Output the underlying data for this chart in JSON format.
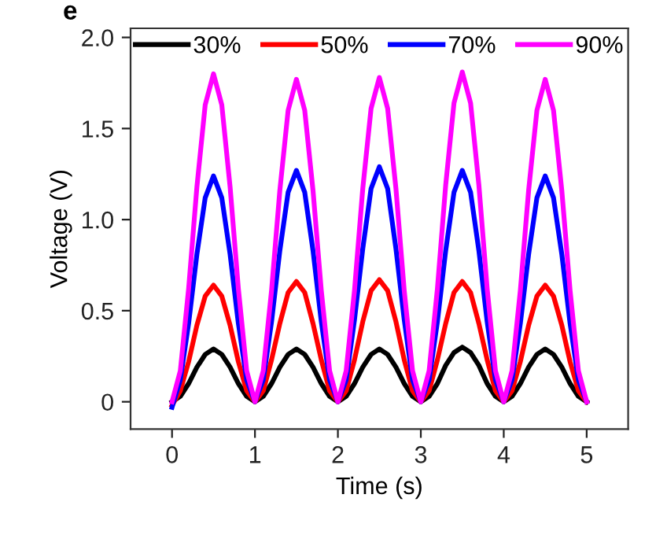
{
  "chart_data": {
    "type": "line",
    "xlabel": "Time (s)",
    "ylabel": "Voltage (V)",
    "annotations": [
      "e"
    ],
    "x": [
      0,
      0.1,
      0.2,
      0.3,
      0.4,
      0.5,
      0.6,
      0.7,
      0.8,
      0.9,
      1,
      1.1,
      1.2,
      1.3,
      1.4,
      1.5,
      1.6,
      1.7,
      1.8,
      1.9,
      2,
      2.1,
      2.2,
      2.3,
      2.4,
      2.5,
      2.6,
      2.7,
      2.8,
      2.9,
      3,
      3.1,
      3.2,
      3.3,
      3.4,
      3.5,
      3.6,
      3.7,
      3.8,
      3.9,
      4,
      4.1,
      4.2,
      4.3,
      4.4,
      4.5,
      4.6,
      4.7,
      4.8,
      4.9,
      5
    ],
    "series": [
      {
        "name": "30%",
        "color": "#000000",
        "values": [
          0,
          0.03,
          0.1,
          0.19,
          0.26,
          0.29,
          0.26,
          0.19,
          0.1,
          0.03,
          0,
          0.03,
          0.1,
          0.19,
          0.26,
          0.29,
          0.26,
          0.19,
          0.1,
          0.03,
          0,
          0.03,
          0.1,
          0.19,
          0.26,
          0.29,
          0.26,
          0.19,
          0.1,
          0.03,
          0,
          0.03,
          0.1,
          0.2,
          0.27,
          0.3,
          0.27,
          0.2,
          0.1,
          0.03,
          0,
          0.03,
          0.1,
          0.19,
          0.26,
          0.29,
          0.26,
          0.19,
          0.1,
          0.03,
          0
        ]
      },
      {
        "name": "50%",
        "color": "#ff0000",
        "values": [
          -0.02,
          0.06,
          0.22,
          0.42,
          0.58,
          0.64,
          0.58,
          0.42,
          0.22,
          0.06,
          0,
          0.06,
          0.23,
          0.43,
          0.6,
          0.66,
          0.6,
          0.43,
          0.23,
          0.06,
          0,
          0.06,
          0.23,
          0.44,
          0.61,
          0.67,
          0.61,
          0.44,
          0.23,
          0.06,
          0,
          0.06,
          0.23,
          0.43,
          0.6,
          0.66,
          0.6,
          0.43,
          0.23,
          0.06,
          0,
          0.06,
          0.22,
          0.42,
          0.58,
          0.64,
          0.58,
          0.42,
          0.22,
          0.06,
          0
        ]
      },
      {
        "name": "70%",
        "color": "#0000ff",
        "values": [
          -0.03,
          0.12,
          0.43,
          0.81,
          1.12,
          1.24,
          1.12,
          0.81,
          0.43,
          0.12,
          0,
          0.12,
          0.44,
          0.83,
          1.15,
          1.27,
          1.15,
          0.83,
          0.44,
          0.12,
          0,
          0.12,
          0.45,
          0.84,
          1.17,
          1.29,
          1.17,
          0.84,
          0.45,
          0.12,
          0,
          0.12,
          0.44,
          0.83,
          1.15,
          1.27,
          1.15,
          0.83,
          0.44,
          0.12,
          0,
          0.12,
          0.43,
          0.81,
          1.12,
          1.24,
          1.12,
          0.81,
          0.43,
          0.12,
          0
        ]
      },
      {
        "name": "90%",
        "color": "#ff00ff",
        "values": [
          0,
          0.17,
          0.62,
          1.18,
          1.63,
          1.8,
          1.63,
          1.18,
          0.62,
          0.17,
          0,
          0.17,
          0.61,
          1.16,
          1.6,
          1.77,
          1.6,
          1.16,
          0.61,
          0.17,
          0,
          0.17,
          0.61,
          1.17,
          1.61,
          1.78,
          1.61,
          1.17,
          0.61,
          0.17,
          0,
          0.17,
          0.62,
          1.19,
          1.64,
          1.81,
          1.64,
          1.19,
          0.62,
          0.17,
          0,
          0.17,
          0.61,
          1.16,
          1.6,
          1.77,
          1.6,
          1.16,
          0.61,
          0.17,
          0
        ]
      }
    ],
    "xlim": [
      -0.5,
      5.5
    ],
    "ylim": [
      -0.15,
      2.05
    ],
    "xticks": [
      0,
      1,
      2,
      3,
      4,
      5
    ],
    "yticks": [
      {
        "value": 0,
        "label": "0"
      },
      {
        "value": 0.5,
        "label": "0.5"
      },
      {
        "value": 1,
        "label": "1.0"
      },
      {
        "value": 1.5,
        "label": "1.5"
      },
      {
        "value": 2,
        "label": "2.0"
      }
    ],
    "legend": "top",
    "grid": false,
    "line_style": "solid",
    "marker": "none"
  }
}
